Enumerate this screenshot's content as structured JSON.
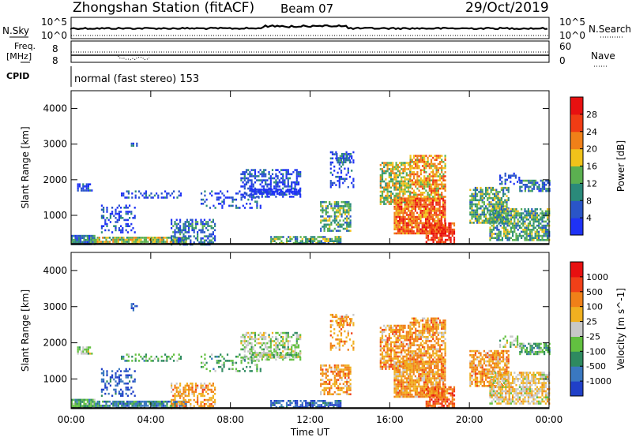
{
  "header": {
    "title": "Zhongshan Station (fitACF)",
    "beam": "Beam 07",
    "date": "29/Oct/2019"
  },
  "strips": {
    "nsky_label": "N.Sky",
    "nsky_top": "10^5",
    "nsky_bottom": "10^0",
    "nsearch_label": "N.Search",
    "nsearch_top": "10^5",
    "nsearch_bottom": "10^0",
    "freq_label": "Freq.",
    "freq_unit": "[MHz]",
    "freq_top": "8",
    "freq_bottom": "8",
    "nave_label": "Nave",
    "nave_top": "60",
    "nave_bottom": "0",
    "cpid_label": "CPID",
    "cpid_value": "normal (fast stereo) 153"
  },
  "chart_data": [
    {
      "type": "heatmap",
      "title": "",
      "ylabel": "Slant Range [km]",
      "xlabel": "",
      "xticks": [
        "00:00",
        "04:00",
        "08:00",
        "12:00",
        "16:00",
        "20:00",
        "00:00"
      ],
      "yticks": [
        1000,
        2000,
        3000,
        4000
      ],
      "ylim": [
        180,
        4500
      ],
      "xlim_hours": [
        0,
        24
      ],
      "colorbar": {
        "label": "Power [dB]",
        "ticks": [
          4,
          8,
          12,
          16,
          20,
          24,
          28
        ],
        "colors": [
          "#1e32f5",
          "#2a55c8",
          "#2a8a7a",
          "#5bb050",
          "#f0c21a",
          "#f08018",
          "#f03c14",
          "#e81010"
        ]
      }
    },
    {
      "type": "heatmap",
      "title": "",
      "ylabel": "Slant Range [km]",
      "xlabel": "Time UT",
      "xticks": [
        "00:00",
        "04:00",
        "08:00",
        "12:00",
        "16:00",
        "20:00",
        "00:00"
      ],
      "yticks": [
        1000,
        2000,
        3000,
        4000
      ],
      "ylim": [
        180,
        4500
      ],
      "xlim_hours": [
        0,
        24
      ],
      "colorbar": {
        "label": "Velocity [m s^-1]",
        "ticks": [
          "1000",
          "500",
          "100",
          "25",
          "-25",
          "-100",
          "-500",
          "-1000"
        ],
        "colors": [
          "#2040c8",
          "#3a78c0",
          "#2e8a60",
          "#62c040",
          "#c8c8c8",
          "#f0b020",
          "#f08018",
          "#f04018",
          "#e81010"
        ]
      }
    }
  ]
}
